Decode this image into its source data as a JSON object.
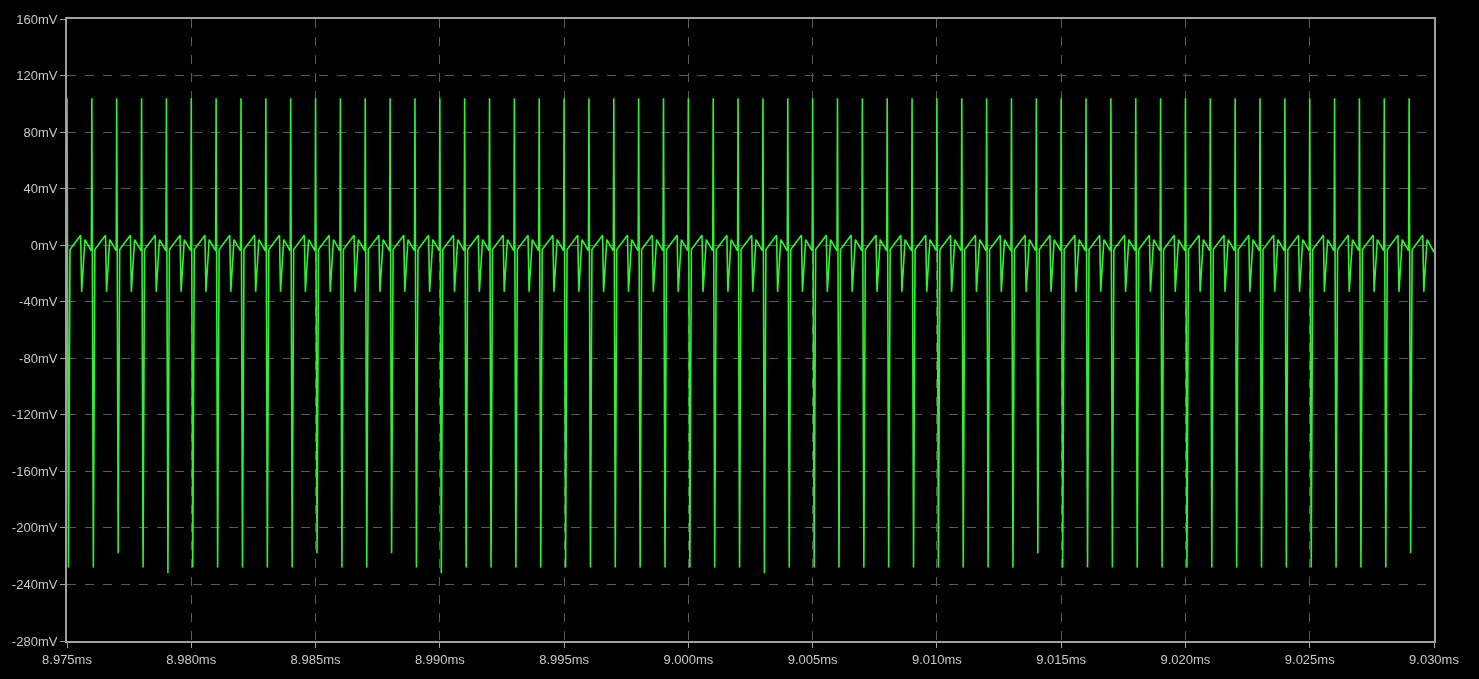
{
  "chart_data": {
    "type": "line",
    "xlim": [
      8.975,
      9.03
    ],
    "ylim": [
      -280,
      160
    ],
    "xticks": [
      {
        "value": 8.975,
        "label": "8.975ms"
      },
      {
        "value": 8.98,
        "label": "8.980ms"
      },
      {
        "value": 8.985,
        "label": "8.985ms"
      },
      {
        "value": 8.99,
        "label": "8.990ms"
      },
      {
        "value": 8.995,
        "label": "8.995ms"
      },
      {
        "value": 9.0,
        "label": "9.000ms"
      },
      {
        "value": 9.005,
        "label": "9.005ms"
      },
      {
        "value": 9.01,
        "label": "9.010ms"
      },
      {
        "value": 9.015,
        "label": "9.015ms"
      },
      {
        "value": 9.02,
        "label": "9.020ms"
      },
      {
        "value": 9.025,
        "label": "9.025ms"
      },
      {
        "value": 9.03,
        "label": "9.030ms"
      }
    ],
    "yticks": [
      {
        "value": -280,
        "label": "-280mV"
      },
      {
        "value": -240,
        "label": "-240mV"
      },
      {
        "value": -200,
        "label": "-200mV"
      },
      {
        "value": -160,
        "label": "-160mV"
      },
      {
        "value": -120,
        "label": "-120mV"
      },
      {
        "value": -80,
        "label": "-80mV"
      },
      {
        "value": -40,
        "label": "-40mV"
      },
      {
        "value": 0,
        "label": "0mV"
      },
      {
        "value": 40,
        "label": "40mV"
      },
      {
        "value": 80,
        "label": "80mV"
      },
      {
        "value": 120,
        "label": "120mV"
      },
      {
        "value": 160,
        "label": "160mV"
      }
    ],
    "grid": true,
    "marker": "none",
    "line_style": "solid",
    "series": [
      {
        "color": "#2ef22e",
        "x": [
          8.975,
          8.97506,
          8.97512,
          8.97555,
          8.97559,
          8.97572,
          8.97598,
          8.976,
          8.97606,
          8.97612,
          8.97655,
          8.97659,
          8.97672,
          8.97698,
          8.977,
          8.97706,
          8.97712,
          8.97755,
          8.97759,
          8.97772,
          8.97798,
          8.978,
          8.97806,
          8.97812,
          8.97855,
          8.97859,
          8.97872,
          8.97898,
          8.979,
          8.97906,
          8.97912,
          8.97955,
          8.97959,
          8.97972,
          8.97998,
          8.98,
          8.98006,
          8.98012,
          8.98055,
          8.98059,
          8.98072,
          8.98098,
          8.981,
          8.98106,
          8.98112,
          8.98155,
          8.98159,
          8.98172,
          8.98198,
          8.982,
          8.98206,
          8.98212,
          8.98255,
          8.98259,
          8.98272,
          8.98298,
          8.983,
          8.98306,
          8.98312,
          8.98355,
          8.98359,
          8.98372,
          8.98398,
          8.984,
          8.98406,
          8.98412,
          8.98455,
          8.98459,
          8.98472,
          8.98498,
          8.985,
          8.98506,
          8.98512,
          8.98555,
          8.98559,
          8.98572,
          8.98598,
          8.986,
          8.98606,
          8.98612,
          8.98655,
          8.98659,
          8.98672,
          8.98698,
          8.987,
          8.98706,
          8.98712,
          8.98755,
          8.98759,
          8.98772,
          8.98798,
          8.988,
          8.98806,
          8.98812,
          8.98855,
          8.98859,
          8.98872,
          8.98898,
          8.989,
          8.98906,
          8.98912,
          8.98955,
          8.98959,
          8.98972,
          8.98998,
          8.99,
          8.99006,
          8.99012,
          8.99055,
          8.99059,
          8.99072,
          8.99098,
          8.991,
          8.99106,
          8.99112,
          8.99155,
          8.99159,
          8.99172,
          8.99198,
          8.992,
          8.99206,
          8.99212,
          8.99255,
          8.99259,
          8.99272,
          8.99298,
          8.993,
          8.99306,
          8.99312,
          8.99355,
          8.99359,
          8.99372,
          8.99398,
          8.994,
          8.99406,
          8.99412,
          8.99455,
          8.99459,
          8.99472,
          8.99498,
          8.995,
          8.99506,
          8.99512,
          8.99555,
          8.99559,
          8.99572,
          8.99598,
          8.996,
          8.99606,
          8.99612,
          8.99655,
          8.99659,
          8.99672,
          8.99698,
          8.997,
          8.99706,
          8.99712,
          8.99755,
          8.99759,
          8.99772,
          8.99798,
          8.998,
          8.99806,
          8.99812,
          8.99855,
          8.99859,
          8.99872,
          8.99898,
          8.999,
          8.99906,
          8.99912,
          8.99955,
          8.99959,
          8.99972,
          8.99998,
          9.0,
          9.00006,
          9.00012,
          9.00055,
          9.00059,
          9.00072,
          9.00098,
          9.001,
          9.00106,
          9.00112,
          9.00155,
          9.00159,
          9.00172,
          9.00198,
          9.002,
          9.00206,
          9.00212,
          9.00255,
          9.00259,
          9.00272,
          9.00298,
          9.003,
          9.00306,
          9.00312,
          9.00355,
          9.00359,
          9.00372,
          9.00398,
          9.004,
          9.00406,
          9.00412,
          9.00455,
          9.00459,
          9.00472,
          9.00498,
          9.005,
          9.00506,
          9.00512,
          9.00555,
          9.00559,
          9.00572,
          9.00598,
          9.006,
          9.00606,
          9.00612,
          9.00655,
          9.00659,
          9.00672,
          9.00698,
          9.007,
          9.00706,
          9.00712,
          9.00755,
          9.00759,
          9.00772,
          9.00798,
          9.008,
          9.00806,
          9.00812,
          9.00855,
          9.00859,
          9.00872,
          9.00898,
          9.009,
          9.00906,
          9.00912,
          9.00955,
          9.00959,
          9.00972,
          9.00998,
          9.01,
          9.01006,
          9.01012,
          9.01055,
          9.01059,
          9.01072,
          9.01098,
          9.011,
          9.01106,
          9.01112,
          9.01155,
          9.01159,
          9.01172,
          9.01198,
          9.012,
          9.01206,
          9.01212,
          9.01255,
          9.01259,
          9.01272,
          9.01298,
          9.013,
          9.01306,
          9.01312,
          9.01355,
          9.01359,
          9.01372,
          9.01398,
          9.014,
          9.01406,
          9.01412,
          9.01455,
          9.01459,
          9.01472,
          9.01498,
          9.015,
          9.01506,
          9.01512,
          9.01555,
          9.01559,
          9.01572,
          9.01598,
          9.016,
          9.01606,
          9.01612,
          9.01655,
          9.01659,
          9.01672,
          9.01698,
          9.017,
          9.01706,
          9.01712,
          9.01755,
          9.01759,
          9.01772,
          9.01798,
          9.018,
          9.01806,
          9.01812,
          9.01855,
          9.01859,
          9.01872,
          9.01898,
          9.019,
          9.01906,
          9.01912,
          9.01955,
          9.01959,
          9.01972,
          9.01998,
          9.02,
          9.02006,
          9.02012,
          9.02055,
          9.02059,
          9.02072,
          9.02098,
          9.021,
          9.02106,
          9.02112,
          9.02155,
          9.02159,
          9.02172,
          9.02198,
          9.022,
          9.02206,
          9.02212,
          9.02255,
          9.02259,
          9.02272,
          9.02298,
          9.023,
          9.02306,
          9.02312,
          9.02355,
          9.02359,
          9.02372,
          9.02398,
          9.024,
          9.02406,
          9.02412,
          9.02455,
          9.02459,
          9.02472,
          9.02498,
          9.025,
          9.02506,
          9.02512,
          9.02555,
          9.02559,
          9.02572,
          9.02598,
          9.026,
          9.02606,
          9.02612,
          9.02655,
          9.02659,
          9.02672,
          9.02698,
          9.027,
          9.02706,
          9.02712,
          9.02755,
          9.02759,
          9.02772,
          9.02798,
          9.028,
          9.02806,
          9.02812,
          9.02855,
          9.02859,
          9.02872,
          9.02898,
          9.029,
          9.02906,
          9.02912,
          9.02955,
          9.02959,
          9.02972,
          9.03
        ],
        "values": [
          104,
          -228,
          -3,
          7,
          -33,
          4,
          -4,
          104,
          -228,
          -3,
          7,
          -33,
          4,
          -4,
          104,
          -218,
          -3,
          7,
          -33,
          4,
          -4,
          104,
          -228,
          -3,
          7,
          -33,
          4,
          -4,
          104,
          -232,
          -3,
          7,
          -33,
          4,
          -4,
          104,
          -228,
          -3,
          7,
          -33,
          4,
          -4,
          104,
          -228,
          -3,
          7,
          -33,
          4,
          -4,
          104,
          -228,
          -3,
          7,
          -33,
          4,
          -4,
          104,
          -228,
          -3,
          7,
          -33,
          4,
          -4,
          104,
          -228,
          -3,
          7,
          -33,
          4,
          -4,
          104,
          -218,
          -3,
          7,
          -33,
          4,
          -4,
          104,
          -228,
          -3,
          7,
          -33,
          4,
          -4,
          104,
          -228,
          -3,
          7,
          -33,
          4,
          -4,
          104,
          -218,
          -3,
          7,
          -33,
          4,
          -4,
          104,
          -228,
          -3,
          7,
          -33,
          4,
          -4,
          104,
          -232,
          -3,
          7,
          -33,
          4,
          -4,
          104,
          -228,
          -3,
          7,
          -33,
          4,
          -4,
          104,
          -228,
          -3,
          7,
          -33,
          4,
          -4,
          104,
          -228,
          -3,
          7,
          -33,
          4,
          -4,
          104,
          -228,
          -3,
          7,
          -33,
          4,
          -4,
          104,
          -228,
          -3,
          7,
          -33,
          4,
          -4,
          104,
          -228,
          -3,
          7,
          -33,
          4,
          -4,
          104,
          -228,
          -3,
          7,
          -33,
          4,
          -4,
          104,
          -228,
          -3,
          7,
          -33,
          4,
          -4,
          104,
          -228,
          -3,
          7,
          -33,
          4,
          -4,
          104,
          -228,
          -3,
          7,
          -33,
          4,
          -4,
          104,
          -228,
          -3,
          7,
          -33,
          4,
          -4,
          104,
          -228,
          -3,
          7,
          -33,
          4,
          -4,
          104,
          -232,
          -3,
          7,
          -33,
          4,
          -4,
          104,
          -228,
          -3,
          7,
          -33,
          4,
          -4,
          104,
          -228,
          -3,
          7,
          -33,
          4,
          -4,
          104,
          -228,
          -3,
          7,
          -33,
          4,
          -4,
          104,
          -228,
          -3,
          7,
          -33,
          4,
          -4,
          104,
          -228,
          -3,
          7,
          -33,
          4,
          -4,
          104,
          -228,
          -3,
          7,
          -33,
          4,
          -4,
          104,
          -228,
          -3,
          7,
          -33,
          4,
          -4,
          104,
          -228,
          -3,
          7,
          -33,
          4,
          -4,
          104,
          -228,
          -3,
          7,
          -33,
          4,
          -4,
          104,
          -228,
          -3,
          7,
          -33,
          4,
          -4,
          104,
          -218,
          -3,
          7,
          -33,
          4,
          -4,
          104,
          -228,
          -3,
          7,
          -33,
          4,
          -4,
          104,
          -228,
          -3,
          7,
          -33,
          4,
          -4,
          104,
          -228,
          -3,
          7,
          -33,
          4,
          -4,
          104,
          -228,
          -3,
          7,
          -33,
          4,
          -4,
          104,
          -228,
          -3,
          7,
          -33,
          4,
          -4,
          104,
          -228,
          -3,
          7,
          -33,
          4,
          -4,
          104,
          -228,
          -3,
          7,
          -33,
          4,
          -4,
          104,
          -228,
          -3,
          7,
          -33,
          4,
          -4,
          104,
          -228,
          -3,
          7,
          -33,
          4,
          -4,
          104,
          -228,
          -3,
          7,
          -33,
          4,
          -4,
          104,
          -228,
          -3,
          7,
          -33,
          4,
          -4,
          104,
          -228,
          -3,
          7,
          -33,
          4,
          -4,
          104,
          -228,
          -3,
          7,
          -33,
          4,
          -4,
          104,
          -228,
          -3,
          7,
          -33,
          4,
          -4,
          104,
          -218,
          -3,
          7,
          -33,
          4,
          -5
        ]
      }
    ]
  }
}
